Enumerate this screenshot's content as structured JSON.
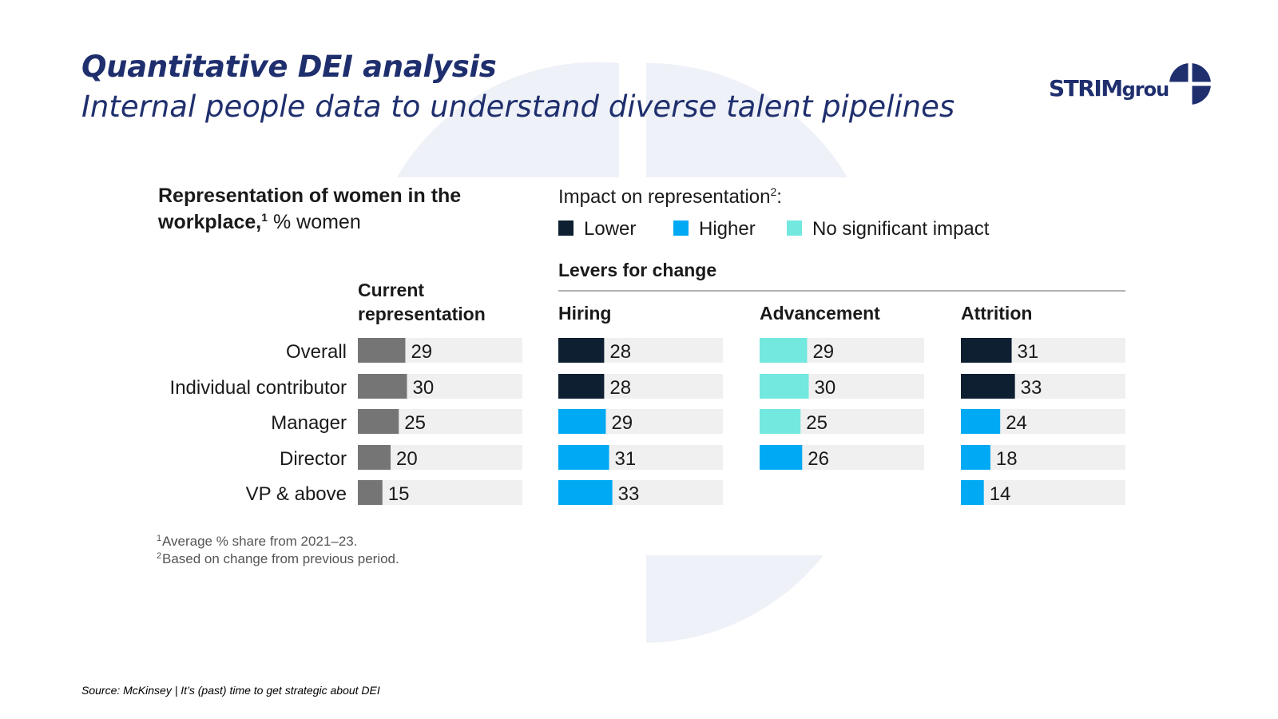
{
  "header": {
    "title": "Quantitative DEI analysis",
    "subtitle": "Internal people data to understand diverse talent pipelines"
  },
  "brand": {
    "name_main": "STRIM",
    "name_sub": "group"
  },
  "source": "Source: McKinsey | It’s (past) time to get strategic about DEI",
  "colors": {
    "lower": "#0d1f30",
    "higher": "#00a9f4",
    "no_impact": "#72e8df",
    "current": "#757575",
    "track": "#f0f0f0",
    "brand": "#1f2f6e"
  },
  "chart_data": {
    "type": "bar",
    "title_bold": "Representation of women in the workplace,",
    "title_sup": "1",
    "title_rest": "% women",
    "legend": {
      "title": "Impact on representation",
      "title_sup": "2",
      "title_suffix": ":",
      "items": [
        {
          "label": "Lower",
          "color": "#0d1f30"
        },
        {
          "label": "Higher",
          "color": "#00a9f4"
        },
        {
          "label": "No significant impact",
          "color": "#72e8df"
        }
      ]
    },
    "levers_label": "Levers for change",
    "categories": [
      "Overall",
      "Individual contributor",
      "Manager",
      "Director",
      "VP & above"
    ],
    "xlim": [
      0,
      100
    ],
    "series": [
      {
        "name": "Current representation",
        "values": [
          29,
          30,
          25,
          20,
          15
        ],
        "impact": [
          "current",
          "current",
          "current",
          "current",
          "current"
        ]
      },
      {
        "name": "Hiring",
        "values": [
          28,
          28,
          29,
          31,
          33
        ],
        "impact": [
          "lower",
          "lower",
          "higher",
          "higher",
          "higher"
        ]
      },
      {
        "name": "Advancement",
        "values": [
          29,
          30,
          25,
          26,
          null
        ],
        "impact": [
          "no_impact",
          "no_impact",
          "no_impact",
          "higher",
          null
        ]
      },
      {
        "name": "Attrition",
        "values": [
          31,
          33,
          24,
          18,
          14
        ],
        "impact": [
          "lower",
          "lower",
          "higher",
          "higher",
          "higher"
        ]
      }
    ],
    "footnotes": [
      {
        "mark": "1",
        "text": "Average % share from 2021–23."
      },
      {
        "mark": "2",
        "text": "Based on change from previous period."
      }
    ]
  }
}
